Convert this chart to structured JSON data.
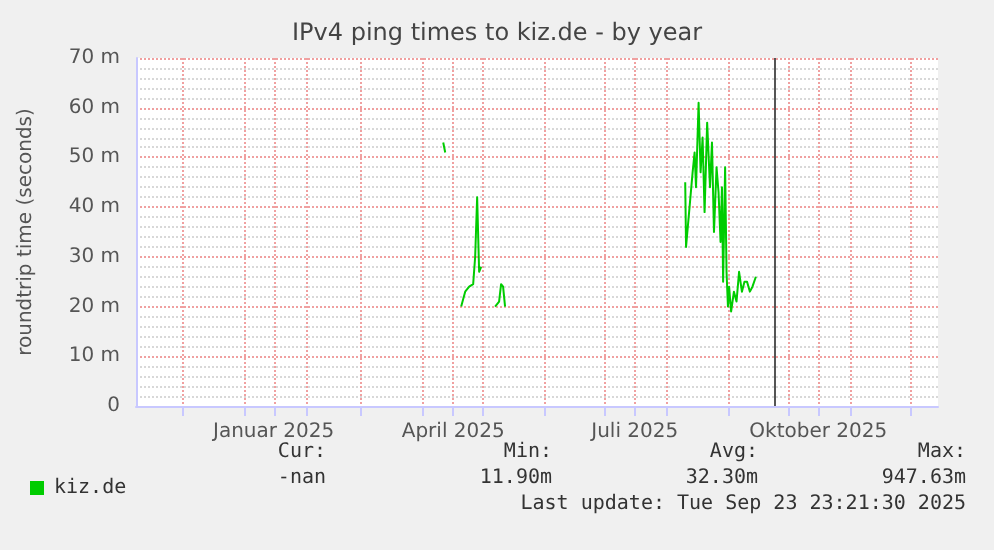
{
  "chart_data": {
    "type": "line",
    "title": "IPv4 ping times to kiz.de - by year",
    "ylabel": "roundtrip time (seconds)",
    "x": [
      "2025-04-11",
      "2025-04-12",
      "2025-04-16",
      "2025-04-20",
      "2025-04-22",
      "2025-04-24",
      "2025-04-26",
      "2025-04-27",
      "2025-04-28",
      "2025-04-29",
      "2025-04-30",
      "2025-05-04",
      "2025-05-07",
      "2025-05-08",
      "2025-05-09",
      "2025-05-10",
      "2025-05-11",
      "2025-05-12",
      "2025-05-20",
      "2025-08-10T07:00",
      "2025-08-10T17:00",
      "2025-08-14T00:00",
      "2025-08-15T00:00",
      "2025-08-15T17:00",
      "2025-08-17T00:00",
      "2025-08-18T00:00",
      "2025-08-19T00:00",
      "2025-08-20T00:00",
      "2025-08-21T07:00",
      "2025-08-22T17:00",
      "2025-08-23T17:00",
      "2025-08-24T17:00",
      "2025-08-26T00:00",
      "2025-08-27T00:00",
      "2025-08-28T00:00",
      "2025-08-28T17:00",
      "2025-08-29T07:00",
      "2025-08-30T07:00",
      "2025-08-31T00:00",
      "2025-08-31T17:00",
      "2025-09-01T07:00",
      "2025-09-02T07:00",
      "2025-09-03T17:00",
      "2025-09-05T00:00",
      "2025-09-06T07:00",
      "2025-09-07T17:00",
      "2025-09-09T00:00",
      "2025-09-10T07:00",
      "2025-09-11T17:00",
      "2025-09-13T00:00",
      "2025-09-14T17:00"
    ],
    "series": [
      {
        "name": "kiz.de",
        "color": "#00cc00",
        "values": [
          53,
          51,
          null,
          20,
          23,
          24,
          24.5,
          30,
          42,
          27,
          28,
          null,
          20,
          20.5,
          21,
          24.5,
          24,
          20,
          null,
          45,
          32,
          47,
          51,
          44,
          61,
          47,
          54,
          39,
          57,
          44,
          53,
          35,
          48,
          43,
          33,
          44,
          25,
          48,
          27,
          20,
          24,
          19,
          23,
          21,
          27,
          23,
          25,
          25,
          23,
          24,
          26
        ]
      }
    ],
    "xlim": [
      "2024-11-08",
      "2025-12-15"
    ],
    "xticks": [
      {
        "value": "2024-12-01",
        "label": null
      },
      {
        "value": "2025-01-01",
        "label": null
      },
      {
        "value": "2025-01-16",
        "label": "Januar 2025"
      },
      {
        "value": "2025-02-01",
        "label": null
      },
      {
        "value": "2025-03-01",
        "label": null
      },
      {
        "value": "2025-04-01",
        "label": null
      },
      {
        "value": "2025-04-16",
        "label": "April 2025"
      },
      {
        "value": "2025-05-01",
        "label": null
      },
      {
        "value": "2025-06-01",
        "label": null
      },
      {
        "value": "2025-07-01",
        "label": null
      },
      {
        "value": "2025-07-16",
        "label": "Juli 2025"
      },
      {
        "value": "2025-08-01",
        "label": null
      },
      {
        "value": "2025-09-01",
        "label": null
      },
      {
        "value": "2025-10-01",
        "label": null
      },
      {
        "value": "2025-10-16",
        "label": "Oktober 2025"
      },
      {
        "value": "2025-11-01",
        "label": null
      },
      {
        "value": "2025-12-01",
        "label": null
      }
    ],
    "ylim": [
      0,
      70
    ],
    "yticks": [
      0,
      {
        "value": 10,
        "label": "10 m"
      },
      {
        "value": 20,
        "label": "20 m"
      },
      {
        "value": 30,
        "label": "30 m"
      },
      {
        "value": 40,
        "label": "40 m"
      },
      {
        "value": 50,
        "label": "50 m"
      },
      {
        "value": 60,
        "label": "60 m"
      },
      {
        "value": 70,
        "label": "70 m"
      }
    ],
    "ref_lines": [
      {
        "axis": "x",
        "value": "2025-09-23T23:21",
        "color": "#555555"
      }
    ],
    "grid": true,
    "legend": "bottom left",
    "marker": "none",
    "line_style": "solid",
    "annotations": [
      "Cur:",
      "Min:",
      "Avg:",
      "Max:",
      "-nan",
      "11.90m",
      "32.30m",
      "947.63m",
      "Last update: Tue Sep 23 23:21:30 2025"
    ]
  }
}
